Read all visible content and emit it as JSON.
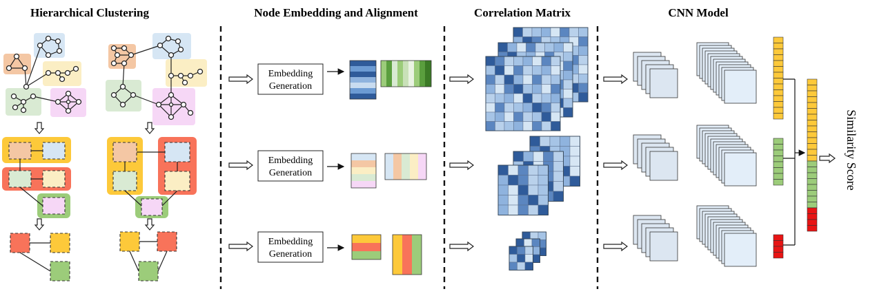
{
  "titles": {
    "hierarchical_clustering": "Hierarchical Clustering",
    "node_embedding": "Node Embedding and Alignment",
    "correlation_matrix": "Correlation Matrix",
    "cnn_model": "CNN Model"
  },
  "embedding_box": {
    "line1": "Embedding",
    "line2": "Generation"
  },
  "output_label": "Similarity Score",
  "colors": {
    "orange": "#f4c7a4",
    "blue": "#d6e6f4",
    "yellow": "#fbeec4",
    "green": "#d9ead3",
    "pink": "#f6d7f6",
    "level_yellow": "#fdc93a",
    "level_red": "#f8735a",
    "level_green": "#9ccc7a",
    "matrix_dark": "#2f5b9a",
    "matrix_light": "#b9d1eb",
    "vector_red": "#e81414"
  }
}
